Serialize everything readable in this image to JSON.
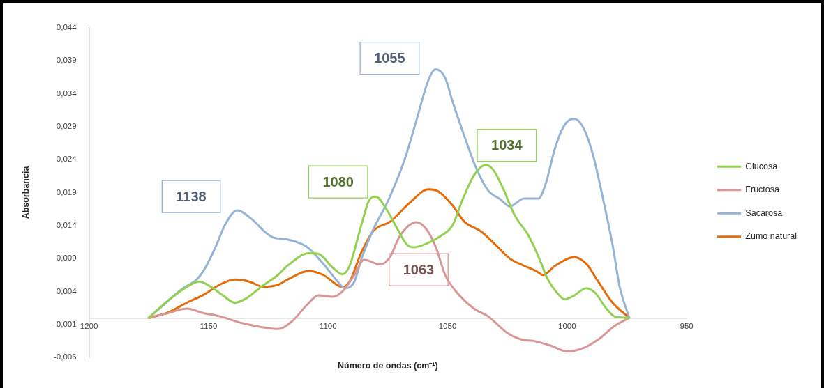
{
  "chart_data": {
    "type": "line",
    "xlabel": "Número de ondas (cm⁻¹)",
    "ylabel": "Absorbancia",
    "xlim": [
      1200,
      950
    ],
    "xticks": [
      1200,
      1150,
      1100,
      1050,
      1000,
      950
    ],
    "ylim": [
      -0.006,
      0.044
    ],
    "yticks": [
      {
        "value": -0.006,
        "label": "-0,006"
      },
      {
        "value": -0.001,
        "label": "-0,001"
      },
      {
        "value": 0.004,
        "label": "0,004"
      },
      {
        "value": 0.009,
        "label": "0,009"
      },
      {
        "value": 0.014,
        "label": "0,014"
      },
      {
        "value": 0.019,
        "label": "0,019"
      },
      {
        "value": 0.024,
        "label": "0,024"
      },
      {
        "value": 0.029,
        "label": "0,029"
      },
      {
        "value": 0.034,
        "label": "0,034"
      },
      {
        "value": 0.039,
        "label": "0,039"
      },
      {
        "value": 0.044,
        "label": "0,044"
      }
    ],
    "grid": false,
    "legend": "right",
    "marker": "none",
    "line_style": "solid",
    "series": [
      {
        "name": "Glucosa",
        "color": "#92d050",
        "x": [
          1175,
          1167,
          1159,
          1154,
          1149,
          1144,
          1139,
          1134,
          1128,
          1121,
          1117,
          1108,
          1104,
          1098,
          1094,
          1091,
          1086,
          1083,
          1080,
          1076,
          1071,
          1067,
          1064,
          1058,
          1053,
          1048,
          1044,
          1039,
          1034,
          1031,
          1027,
          1022,
          1016,
          1012,
          1008,
          1004,
          1001,
          997,
          992,
          988,
          984,
          980,
          974
        ],
        "values": [
          0,
          0.0026,
          0.0047,
          0.0055,
          0.0047,
          0.0034,
          0.0023,
          0.003,
          0.0047,
          0.0065,
          0.0079,
          0.0098,
          0.0097,
          0.0076,
          0.0066,
          0.0079,
          0.0142,
          0.0177,
          0.0184,
          0.0167,
          0.0135,
          0.0111,
          0.0107,
          0.0114,
          0.0124,
          0.014,
          0.0177,
          0.0216,
          0.0232,
          0.0225,
          0.0198,
          0.0156,
          0.0124,
          0.0093,
          0.0058,
          0.0037,
          0.0028,
          0.0034,
          0.0045,
          0.0037,
          0.0016,
          0.0002,
          0
        ]
      },
      {
        "name": "Fructosa",
        "color": "#d99694",
        "x": [
          1175,
          1167,
          1159,
          1153,
          1145,
          1136,
          1128,
          1121,
          1115,
          1109,
          1104,
          1098,
          1094,
          1089,
          1085,
          1078,
          1074,
          1070,
          1063,
          1059,
          1055,
          1051,
          1046,
          1039,
          1033,
          1025,
          1019,
          1014,
          1007,
          1000,
          994,
          987,
          980,
          974
        ],
        "values": [
          0,
          0.0007,
          0.0014,
          0.0008,
          0.0002,
          -0.0008,
          -0.0014,
          -0.0017,
          -0.0005,
          0.0019,
          0.0034,
          0.0032,
          0.004,
          0.0065,
          0.0088,
          0.0081,
          0.0093,
          0.0124,
          0.0145,
          0.0135,
          0.0108,
          0.0065,
          0.0038,
          0.0014,
          0.0002,
          -0.0023,
          -0.0033,
          -0.0035,
          -0.0042,
          -0.0051,
          -0.0047,
          -0.0033,
          -0.0012,
          0
        ]
      },
      {
        "name": "Sacarosa",
        "color": "#95b3d7",
        "x": [
          1175,
          1169,
          1161,
          1155,
          1152,
          1147,
          1143,
          1138,
          1132,
          1126,
          1123,
          1117,
          1109,
          1102,
          1096,
          1093,
          1089,
          1086,
          1081,
          1075,
          1068,
          1063,
          1058,
          1055,
          1051,
          1048,
          1043,
          1038,
          1033,
          1028,
          1024,
          1018,
          1012,
          1009,
          1005,
          1001,
          997,
          993,
          989,
          985,
          981,
          978,
          974
        ],
        "values": [
          0,
          0.0019,
          0.0044,
          0.0058,
          0.0072,
          0.0108,
          0.0142,
          0.0163,
          0.015,
          0.0129,
          0.0122,
          0.0119,
          0.0108,
          0.0082,
          0.0055,
          0.0045,
          0.0055,
          0.009,
          0.0135,
          0.0177,
          0.024,
          0.03,
          0.0361,
          0.0377,
          0.0364,
          0.0329,
          0.0276,
          0.0227,
          0.0193,
          0.018,
          0.0169,
          0.0181,
          0.0181,
          0.0203,
          0.0258,
          0.0293,
          0.0302,
          0.0287,
          0.0245,
          0.0181,
          0.0111,
          0.0047,
          0
        ]
      },
      {
        "name": "Zumo natural",
        "color": "#e46c0a",
        "x": [
          1175,
          1167,
          1159,
          1152,
          1145,
          1139,
          1133,
          1127,
          1121,
          1117,
          1108,
          1102,
          1094,
          1091,
          1086,
          1081,
          1074,
          1066,
          1058,
          1054,
          1048,
          1043,
          1036,
          1030,
          1024,
          1018,
          1013,
          1010,
          1005,
          997,
          992,
          987,
          981,
          974
        ],
        "values": [
          0,
          0.0008,
          0.0023,
          0.0035,
          0.0051,
          0.0058,
          0.0055,
          0.0047,
          0.005,
          0.0058,
          0.0071,
          0.0065,
          0.0047,
          0.0055,
          0.01,
          0.0132,
          0.0146,
          0.0174,
          0.0195,
          0.0192,
          0.0171,
          0.0146,
          0.0131,
          0.0111,
          0.009,
          0.0079,
          0.0071,
          0.0065,
          0.0079,
          0.0092,
          0.0082,
          0.0055,
          0.0023,
          0
        ]
      }
    ],
    "annotations": [
      {
        "text": "1138",
        "x": 1138,
        "y": 0.0163
      },
      {
        "text": "1080",
        "x": 1080,
        "y": 0.0184
      },
      {
        "text": "1055",
        "x": 1055,
        "y": 0.0377
      },
      {
        "text": "1034",
        "x": 1034,
        "y": 0.0232
      },
      {
        "text": "1063",
        "x": 1063,
        "y": 0.0145
      }
    ]
  }
}
